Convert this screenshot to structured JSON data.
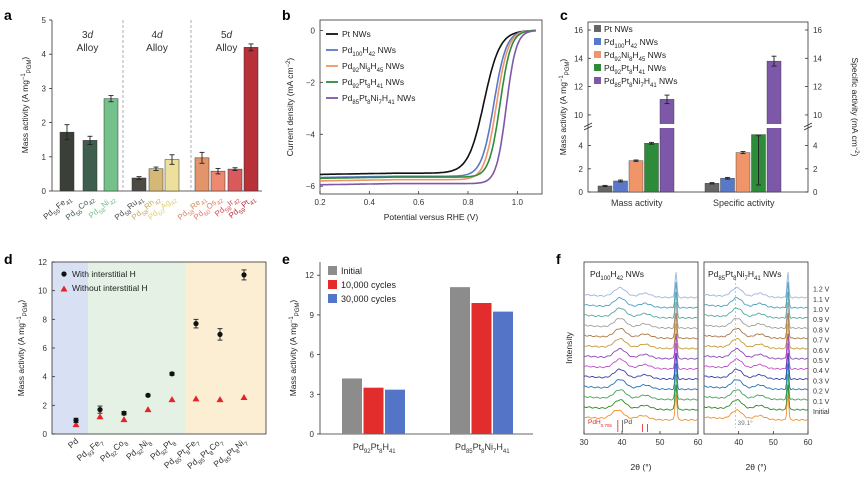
{
  "figure_title": "Pd-based nanowire electrocatalysts",
  "colors": {
    "pt": "#444444",
    "pd": "#5a78c8",
    "pdni": "#f0956a",
    "pdpt": "#2e8b3a",
    "pdptni": "#7d58a8",
    "fe3d": "#3a3f37",
    "co3d": "#3e5e4e",
    "ni3d": "#74c18b",
    "ru4d": "#4d4a44",
    "rh4d": "#d6b876",
    "ag4d": "#ece09c",
    "re5d": "#e2946a",
    "os5d": "#ee8870",
    "ir5d": "#d85a5c",
    "pt5d": "#b83038",
    "with_h": "#111111",
    "without_h": "#e6222a",
    "band_blue": "#d8e0f3",
    "band_green": "#e4f1e4",
    "band_orange": "#fbeed3",
    "initial": "#8c8c8c",
    "c10k": "#e32c2c",
    "c30k": "#5474c8"
  },
  "chart_data": [
    {
      "panel": "a",
      "type": "bar",
      "ylabel": "Mass activity (A mg",
      "ylabel_sup": "−1",
      "ylabel_sub": "PGM",
      "ylabel_end": ")",
      "ylim": [
        0,
        5
      ],
      "yticks": [
        "0",
        "1",
        "2",
        "3",
        "4",
        "5"
      ],
      "groups": [
        {
          "title": "3d",
          "subtitle": "Alloy",
          "labels": [
            "Pd55Fe41",
            "Pd56Co42",
            "Pd58Ni42"
          ],
          "values": [
            1.72,
            1.48,
            2.7
          ],
          "errors": [
            0.22,
            0.12,
            0.09
          ],
          "colors": [
            "#3a3f37",
            "#3e5e4e",
            "#74c18b"
          ],
          "label_colors": [
            "#3a3f37",
            "#3e5e4e",
            "#74c18b"
          ]
        },
        {
          "title": "4d",
          "subtitle": "Alloy",
          "labels": [
            "Pd58Ru41",
            "Pd58Rh42",
            "Pd60Ag42"
          ],
          "values": [
            0.38,
            0.65,
            0.92
          ],
          "errors": [
            0.04,
            0.05,
            0.14
          ],
          "colors": [
            "#4d4a44",
            "#d6b876",
            "#ece09c"
          ],
          "label_colors": [
            "#4d4a44",
            "#c9a85e",
            "#e0cf6e"
          ]
        },
        {
          "title": "5d",
          "subtitle": "Alloy",
          "labels": [
            "Pd58Re41",
            "Pd60Os42",
            "Pd58Ir42",
            "Pd59Pt41"
          ],
          "values": [
            0.97,
            0.58,
            0.64,
            4.2
          ],
          "errors": [
            0.16,
            0.08,
            0.04,
            0.1
          ],
          "colors": [
            "#e2946a",
            "#ee8870",
            "#d85a5c",
            "#b83038"
          ],
          "label_colors": [
            "#d8875a",
            "#e87a60",
            "#cf4e50",
            "#b83038"
          ]
        }
      ]
    },
    {
      "panel": "b",
      "type": "line",
      "xlabel": "Potential versus RHE (V)",
      "ylabel": "Current density (mA cm",
      "ylabel_sup": "−2",
      "ylabel_end": ")",
      "xlim": [
        0.2,
        1.1
      ],
      "ylim": [
        -6.3,
        0.4
      ],
      "xticks": [
        "0.2",
        "0.4",
        "0.6",
        "0.8",
        "1.0"
      ],
      "xtick_values": [
        0.2,
        0.4,
        0.6,
        0.8,
        1.0
      ],
      "yticks": [
        "0",
        "−2",
        "−4",
        "−6"
      ],
      "ytick_values": [
        0,
        -2,
        -4,
        -6
      ],
      "series": [
        {
          "name": "Pt NWs",
          "legend": [
            "Pt NWs"
          ],
          "color": "#111111",
          "jl": -5.5,
          "half": 0.865,
          "k": 0.032
        },
        {
          "name": "Pd100H42 NWs",
          "legend": [
            "Pd",
            "100",
            "H",
            "42",
            " NWs"
          ],
          "color": "#5a78c8",
          "jl": -5.62,
          "half": 0.905,
          "k": 0.025
        },
        {
          "name": "Pd92Ni8H45 NWs",
          "legend": [
            "Pd",
            "92",
            "Ni",
            "8",
            "H",
            "45",
            " NWs"
          ],
          "color": "#f0956a",
          "jl": -5.75,
          "half": 0.915,
          "k": 0.024
        },
        {
          "name": "Pd92Pt8H41 NWs",
          "legend": [
            "Pd",
            "92",
            "Pt",
            "8",
            "H",
            "41",
            " NWs"
          ],
          "color": "#2e8b3a",
          "jl": -5.65,
          "half": 0.93,
          "k": 0.022
        },
        {
          "name": "Pd85Pt8Ni7H41 NWs",
          "legend": [
            "Pd",
            "85",
            "Pt",
            "8",
            "Ni",
            "7",
            "H",
            "41",
            " NWs"
          ],
          "color": "#7d58a8",
          "jl": -5.9,
          "half": 0.955,
          "k": 0.02
        }
      ]
    },
    {
      "panel": "c",
      "type": "bar",
      "categories": [
        "Mass activity",
        "Specific activity"
      ],
      "ylabel_left": "Mass activity (A mg",
      "ylabel_right": "Specific activity (mA cm",
      "yticks_low": [
        "0",
        "2",
        "4"
      ],
      "yticks_high": [
        "10",
        "12",
        "14",
        "16"
      ],
      "series": [
        {
          "name": "Pt NWs",
          "legend": [
            "Pt NWs"
          ],
          "color": "#666666",
          "values": [
            0.52,
            0.75
          ],
          "errors": [
            0.05,
            0.06
          ]
        },
        {
          "name": "Pd100H42 NWs",
          "legend": [
            "Pd",
            "100",
            "H",
            "42",
            " NWs"
          ],
          "color": "#5a78c8",
          "values": [
            0.95,
            1.18
          ],
          "errors": [
            0.08,
            0.07
          ]
        },
        {
          "name": "Pd92Ni8H45 NWs",
          "legend": [
            "Pd",
            "92",
            "Ni",
            "8",
            "H",
            "45",
            " NWs"
          ],
          "color": "#f0956a",
          "values": [
            2.7,
            3.4
          ],
          "errors": [
            0.06,
            0.09
          ]
        },
        {
          "name": "Pd92Pt8H41 NWs",
          "legend": [
            "Pd",
            "92",
            "Pt",
            "8",
            "H",
            "41",
            " NWs"
          ],
          "color": "#2e8b3a",
          "values": [
            4.2,
            4.95
          ],
          "errors": [
            0.08,
            0.1
          ]
        },
        {
          "name": "Pd85Pt8Ni7H41 NWs",
          "legend": [
            "Pd",
            "85",
            "Pt",
            "8",
            "Ni",
            "7",
            "H",
            "41",
            " NWs"
          ],
          "color": "#7d58a8",
          "values": [
            11.1,
            13.8
          ],
          "errors": [
            0.3,
            0.35
          ]
        }
      ]
    },
    {
      "panel": "d",
      "type": "scatter",
      "ylabel": "Mass activity (A mg",
      "ylim": [
        0,
        12
      ],
      "yticks": [
        "0",
        "2",
        "4",
        "6",
        "8",
        "10",
        "12"
      ],
      "categories": [
        "Pd",
        "Pd93Fe7",
        "Pd92Co8",
        "Pd92Ni8",
        "Pd92Pt8",
        "Pd85Pt8Fe7",
        "Pd85Pt8Co7",
        "Pd85Pt8Ni7"
      ],
      "series": [
        {
          "name": "With interstitial H",
          "color": "#111111",
          "marker": "circle",
          "values": [
            0.95,
            1.7,
            1.45,
            2.7,
            4.2,
            7.7,
            6.95,
            11.1
          ],
          "errors": [
            0.15,
            0.25,
            0.12,
            0.08,
            0.1,
            0.3,
            0.4,
            0.35
          ]
        },
        {
          "name": "Without interstitial H",
          "color": "#e6222a",
          "marker": "triangle",
          "values": [
            0.65,
            1.2,
            1.0,
            1.7,
            2.4,
            2.45,
            2.4,
            2.55
          ]
        }
      ]
    },
    {
      "panel": "e",
      "type": "bar",
      "ylabel": "Mass activity (A mg",
      "ylim": [
        0,
        13
      ],
      "yticks": [
        "0",
        "3",
        "6",
        "9",
        "12"
      ],
      "categories": [
        "Pd92Pt8H41",
        "Pd85Pt8Ni7H41"
      ],
      "series": [
        {
          "name": "Initial",
          "color": "#8c8c8c",
          "values": [
            4.2,
            11.1
          ]
        },
        {
          "name": "10,000 cycles",
          "color": "#e32c2c",
          "values": [
            3.5,
            9.9
          ]
        },
        {
          "name": "30,000 cycles",
          "color": "#5474c8",
          "values": [
            3.35,
            9.25
          ]
        }
      ]
    },
    {
      "panel": "f",
      "type": "line",
      "xlabel": "2θ (°)",
      "ylabel": "Intensity",
      "subpanels": [
        {
          "title": [
            "Pd",
            "100",
            "H",
            "42",
            " NWs"
          ],
          "xticks": [
            "30",
            "40",
            "50",
            "60"
          ],
          "ref_labels": [
            "PdH",
            "0.706",
            "Pd"
          ]
        },
        {
          "title": [
            "Pd",
            "85",
            "Pt",
            "8",
            "Ni",
            "7",
            "H",
            "41",
            " NWs"
          ],
          "xticks": [
            "40",
            "50",
            "60"
          ],
          "peak_label": "39.1°"
        }
      ],
      "potentials": [
        "1.2 V",
        "1.1 V",
        "1.0 V",
        "0.9 V",
        "0.8 V",
        "0.7 V",
        "0.6 V",
        "0.5 V",
        "0.4 V",
        "0.3 V",
        "0.2 V",
        "0.1 V",
        "Initial"
      ],
      "trace_colors": [
        "#9fb6d8",
        "#4aa0c8",
        "#58a8a0",
        "#a0a0a0",
        "#a87848",
        "#c89a3a",
        "#9048b8",
        "#c050c8",
        "#3a3fb0",
        "#2070c0",
        "#40a060",
        "#2a8a2a",
        "#f09030"
      ]
    }
  ]
}
